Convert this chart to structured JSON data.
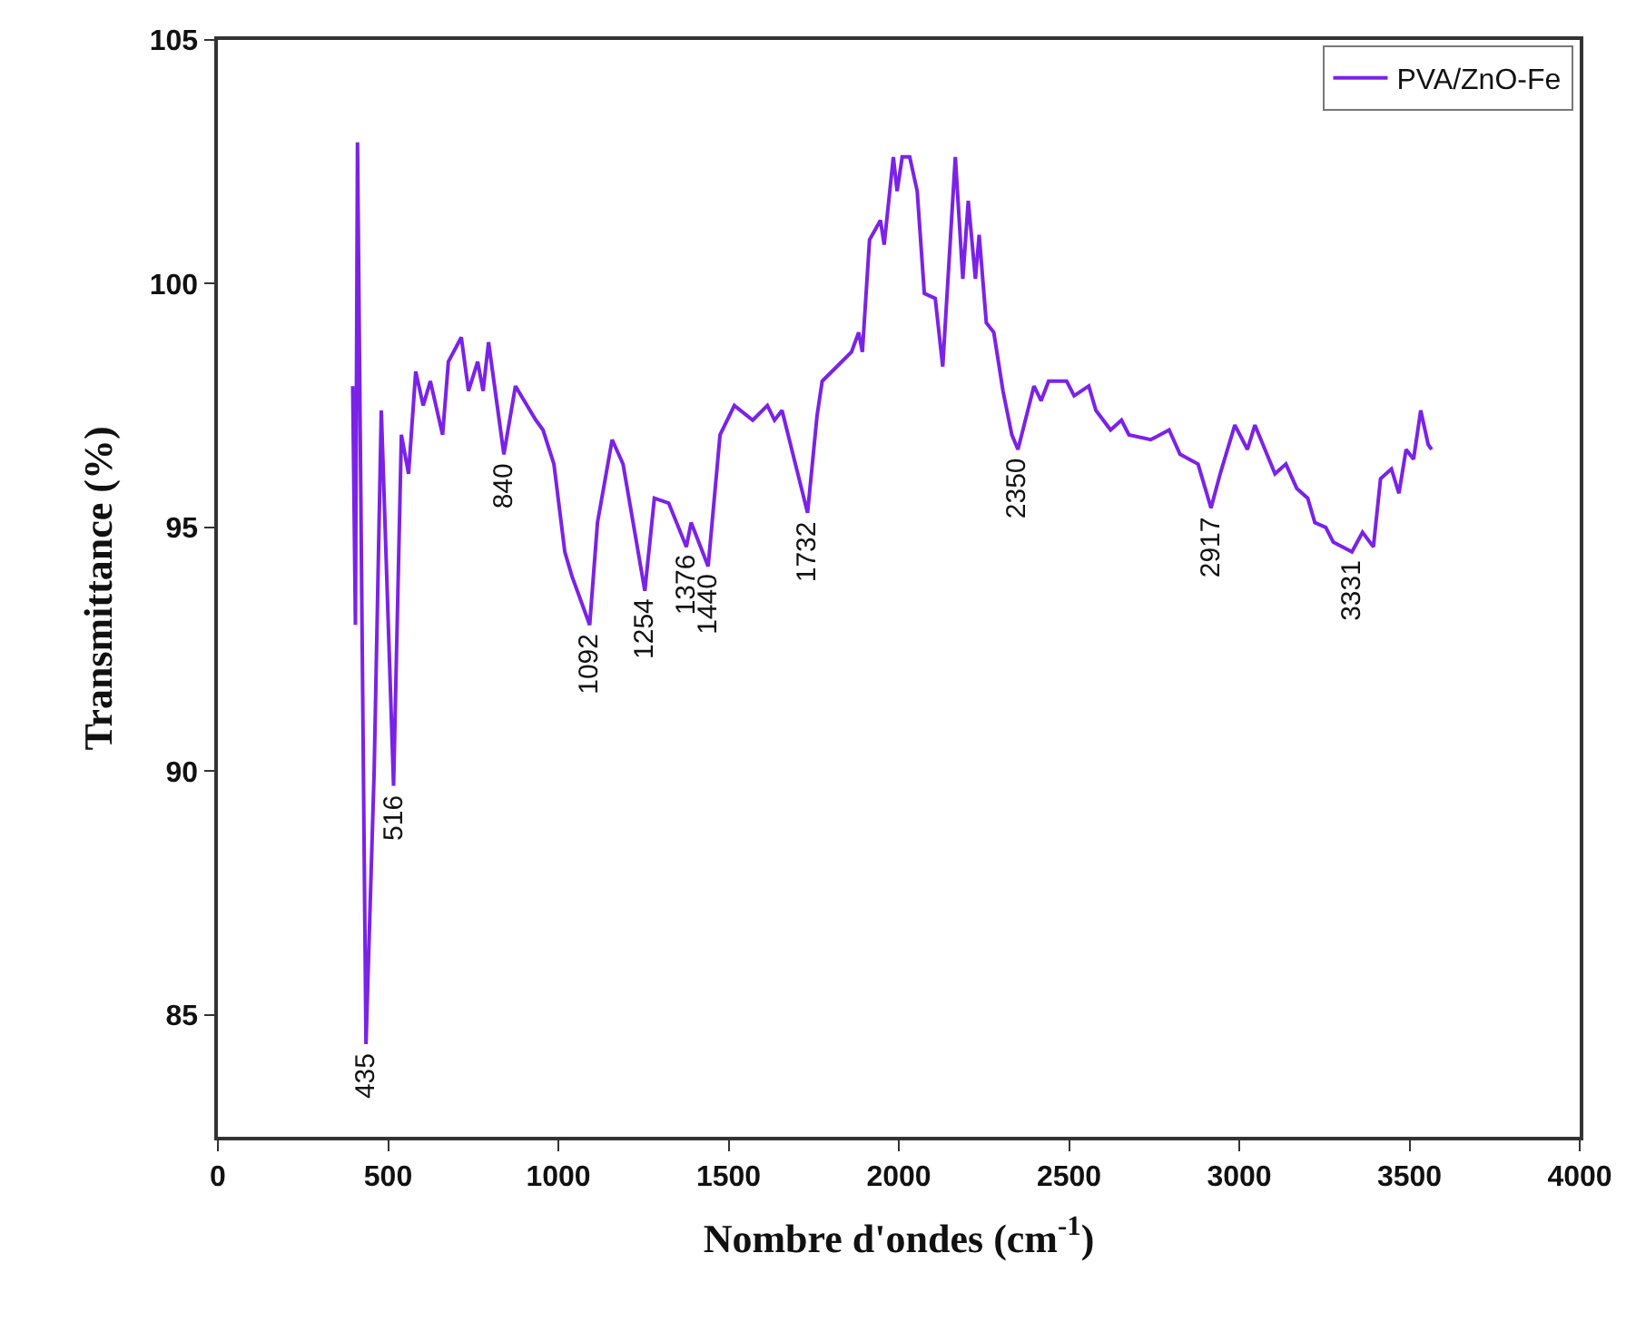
{
  "chart_data": {
    "type": "line",
    "xlabel": "Nombre d'ondes (cm$^{-1}$)",
    "ylabel": "Transmittance (%)",
    "xlim": [
      0,
      4000
    ],
    "xticks": [
      0,
      500,
      1000,
      1500,
      2000,
      2500,
      3000,
      3500,
      4000
    ],
    "ylim": [
      82.5,
      105
    ],
    "yticks": [
      85,
      90,
      95,
      100,
      105
    ],
    "legend": "top right",
    "marker": "none",
    "line_style": "solid",
    "series": [
      {
        "name": "PVA/ZnO-Fe",
        "color": "#7b22e8",
        "x": [
          396,
          404,
          410,
          435,
          459,
          480,
          516,
          539,
          560,
          581,
          603,
          624,
          660,
          677,
          715,
          736,
          763,
          779,
          795,
          840,
          874,
          934,
          955,
          987,
          1019,
          1040,
          1092,
          1115,
          1158,
          1190,
          1254,
          1282,
          1324,
          1376,
          1390,
          1440,
          1475,
          1517,
          1571,
          1614,
          1635,
          1657,
          1732,
          1760,
          1775,
          1818,
          1861,
          1882,
          1893,
          1914,
          1946,
          1957,
          1984,
          1995,
          2010,
          2032,
          2054,
          2075,
          2107,
          2129,
          2166,
          2188,
          2204,
          2225,
          2236,
          2257,
          2279,
          2306,
          2332,
          2350,
          2397,
          2418,
          2440,
          2493,
          2515,
          2558,
          2579,
          2622,
          2654,
          2676,
          2740,
          2794,
          2826,
          2879,
          2917,
          2944,
          2987,
          3024,
          3046,
          3105,
          3137,
          3169,
          3201,
          3222,
          3254,
          3276,
          3331,
          3362,
          3394,
          3415,
          3447,
          3469,
          3490,
          3512,
          3533,
          3555,
          3565
        ],
        "values": [
          97.9,
          93.0,
          102.9,
          84.4,
          90.0,
          97.4,
          89.7,
          96.9,
          96.1,
          98.2,
          97.5,
          98.0,
          96.9,
          98.4,
          98.9,
          97.8,
          98.4,
          97.8,
          98.8,
          96.5,
          97.9,
          97.2,
          97.0,
          96.3,
          94.5,
          94.0,
          93.0,
          95.1,
          96.8,
          96.3,
          93.7,
          95.6,
          95.5,
          94.6,
          95.1,
          94.2,
          96.9,
          97.5,
          97.2,
          97.5,
          97.2,
          97.4,
          95.3,
          97.3,
          98.0,
          98.3,
          98.6,
          99.0,
          98.6,
          100.9,
          101.3,
          100.8,
          102.6,
          101.9,
          102.6,
          102.6,
          101.9,
          99.8,
          99.7,
          98.3,
          102.6,
          100.1,
          101.7,
          100.1,
          101.0,
          99.2,
          99.0,
          97.8,
          96.9,
          96.6,
          97.9,
          97.6,
          98.0,
          98.0,
          97.7,
          97.9,
          97.4,
          97.0,
          97.2,
          96.9,
          96.8,
          97.0,
          96.5,
          96.3,
          95.4,
          96.1,
          97.1,
          96.6,
          97.1,
          96.1,
          96.3,
          95.8,
          95.6,
          95.1,
          95.0,
          94.7,
          94.5,
          94.9,
          94.6,
          96.0,
          96.2,
          95.7,
          96.6,
          96.4,
          97.4,
          96.7,
          96.6
        ]
      }
    ],
    "annotations": [
      {
        "text": "435",
        "x": 435,
        "y": 84.4
      },
      {
        "text": "516",
        "x": 516,
        "y": 89.7
      },
      {
        "text": "840",
        "x": 840,
        "y": 96.5
      },
      {
        "text": "1092",
        "x": 1092,
        "y": 93.0
      },
      {
        "text": "1254",
        "x": 1254,
        "y": 93.7
      },
      {
        "text": "1376",
        "x": 1376,
        "y": 94.6
      },
      {
        "text": "1440",
        "x": 1440,
        "y": 94.2
      },
      {
        "text": "1732",
        "x": 1732,
        "y": 95.3
      },
      {
        "text": "2350",
        "x": 2350,
        "y": 96.6
      },
      {
        "text": "2917",
        "x": 2917,
        "y": 95.4
      },
      {
        "text": "3331",
        "x": 3331,
        "y": 94.5
      }
    ]
  }
}
